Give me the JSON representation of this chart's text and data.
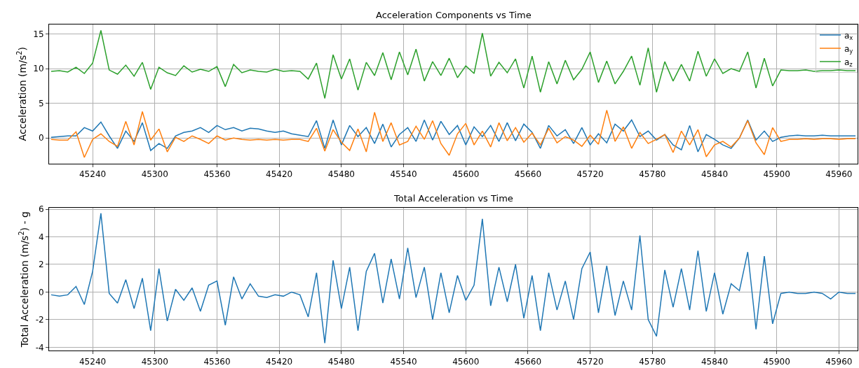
{
  "chart_data": [
    {
      "type": "line",
      "title": "Acceleration Components vs Time",
      "ylabel": "Acceleration (m/s$^{2}$)",
      "x": [
        45200,
        45208,
        45216,
        45224,
        45232,
        45240,
        45248,
        45256,
        45264,
        45272,
        45280,
        45288,
        45296,
        45304,
        45312,
        45320,
        45328,
        45336,
        45344,
        45352,
        45360,
        45368,
        45376,
        45384,
        45392,
        45400,
        45408,
        45416,
        45424,
        45432,
        45440,
        45448,
        45456,
        45464,
        45472,
        45480,
        45488,
        45496,
        45504,
        45512,
        45520,
        45528,
        45536,
        45544,
        45552,
        45560,
        45568,
        45576,
        45584,
        45592,
        45600,
        45608,
        45616,
        45624,
        45632,
        45640,
        45648,
        45656,
        45664,
        45672,
        45680,
        45688,
        45696,
        45704,
        45712,
        45720,
        45728,
        45736,
        45744,
        45752,
        45760,
        45768,
        45776,
        45784,
        45792,
        45800,
        45808,
        45816,
        45824,
        45832,
        45840,
        45848,
        45856,
        45864,
        45872,
        45880,
        45888,
        45896,
        45904,
        45912,
        45920,
        45928,
        45936,
        45944,
        45952,
        45960,
        45968,
        45976
      ],
      "series": [
        {
          "name": "a$_{x}$",
          "color": "#1f77b4",
          "values": [
            0.1,
            0.2,
            0.3,
            0.3,
            1.5,
            1.0,
            2.3,
            0.3,
            -1.5,
            1.0,
            -0.5,
            2.2,
            -1.8,
            -0.8,
            -1.5,
            0.3,
            0.8,
            1.0,
            1.5,
            0.8,
            1.8,
            1.2,
            1.5,
            1.0,
            1.4,
            1.3,
            1.0,
            0.8,
            1.0,
            0.6,
            0.4,
            0.2,
            2.5,
            -1.5,
            2.6,
            -1.0,
            1.8,
            0.2,
            1.5,
            -0.8,
            2.0,
            -1.3,
            0.5,
            1.5,
            -0.5,
            2.6,
            -0.3,
            2.4,
            0.5,
            1.8,
            -1.0,
            1.6,
            0.2,
            1.8,
            -0.5,
            2.2,
            -0.4,
            2.0,
            0.8,
            -1.5,
            1.8,
            0.3,
            1.2,
            -0.8,
            1.5,
            -1.0,
            0.6,
            -0.7,
            2.0,
            1.0,
            2.6,
            0.2,
            1.0,
            -0.3,
            0.5,
            -1.0,
            -1.7,
            1.8,
            -2.0,
            0.5,
            -0.2,
            -1.0,
            -1.5,
            0.0,
            2.6,
            -0.3,
            1.0,
            -0.5,
            0.1,
            0.3,
            0.4,
            0.3,
            0.3,
            0.4,
            0.3,
            0.3,
            0.3,
            0.3
          ]
        },
        {
          "name": "a$_{y}$",
          "color": "#ff7f0e",
          "values": [
            -0.2,
            -0.3,
            -0.3,
            0.9,
            -2.8,
            -0.2,
            0.6,
            -0.5,
            -1.2,
            2.4,
            -1.0,
            3.8,
            -0.3,
            1.3,
            -2.0,
            0.1,
            -0.5,
            0.3,
            -0.2,
            -0.8,
            0.3,
            -0.3,
            0.0,
            -0.2,
            -0.3,
            -0.2,
            -0.3,
            -0.2,
            -0.3,
            -0.2,
            -0.2,
            -0.5,
            1.4,
            -1.9,
            1.2,
            -0.6,
            -1.8,
            1.3,
            -2.0,
            3.7,
            -0.5,
            2.2,
            -1.0,
            -0.5,
            1.7,
            -0.2,
            2.5,
            -0.8,
            -2.5,
            0.6,
            2.1,
            -1.0,
            1.0,
            -1.3,
            2.2,
            -0.4,
            1.5,
            -0.6,
            0.7,
            -1.0,
            1.4,
            -0.7,
            0.2,
            -0.3,
            -1.2,
            0.4,
            -0.9,
            4.0,
            -0.5,
            1.6,
            -1.5,
            0.8,
            -0.8,
            -0.2,
            0.5,
            -2.1,
            1.0,
            -1.0,
            1.2,
            -2.7,
            -1.0,
            -0.5,
            -1.3,
            0.0,
            2.5,
            -0.7,
            -2.4,
            1.5,
            -0.5,
            -0.2,
            -0.2,
            -0.1,
            -0.2,
            -0.1,
            -0.1,
            -0.2,
            -0.1,
            -0.1
          ]
        },
        {
          "name": "a$_{z}$",
          "color": "#2ca02c",
          "values": [
            9.6,
            9.7,
            9.5,
            10.2,
            9.3,
            10.8,
            15.5,
            9.8,
            9.2,
            10.5,
            8.9,
            10.9,
            7.0,
            10.2,
            9.4,
            9.0,
            10.4,
            9.5,
            9.9,
            9.6,
            10.3,
            7.4,
            10.6,
            9.4,
            9.8,
            9.6,
            9.5,
            9.9,
            9.6,
            9.7,
            9.6,
            8.5,
            10.8,
            5.7,
            12.0,
            8.5,
            11.4,
            6.9,
            10.9,
            9.0,
            12.3,
            8.4,
            12.4,
            9.1,
            12.8,
            8.2,
            11.0,
            9.0,
            11.5,
            8.7,
            10.4,
            9.3,
            15.1,
            8.9,
            10.9,
            9.4,
            11.4,
            7.2,
            11.8,
            6.6,
            11.0,
            7.8,
            11.2,
            8.4,
            9.9,
            12.4,
            8.0,
            11.1,
            7.8,
            9.6,
            11.8,
            7.6,
            13.0,
            6.6,
            11.0,
            8.2,
            10.6,
            8.2,
            12.5,
            8.9,
            11.4,
            9.3,
            10.0,
            9.6,
            12.4,
            7.2,
            11.5,
            7.5,
            9.8,
            9.7,
            9.7,
            9.8,
            9.6,
            9.7,
            9.7,
            9.8,
            9.7,
            9.7
          ]
        }
      ],
      "xlim": [
        45198,
        45978
      ],
      "xticks": [
        45240,
        45300,
        45360,
        45420,
        45480,
        45540,
        45600,
        45660,
        45720,
        45780,
        45840,
        45900,
        45960
      ],
      "ylim": [
        -3.7,
        16.4
      ],
      "yticks": [
        0,
        5,
        10,
        15
      ],
      "grid": true,
      "legend": "top right"
    },
    {
      "type": "line",
      "title": "Total Acceleration vs Time",
      "ylabel": "Total Acceleration (m/s$^{2}$) - g",
      "x": [
        45200,
        45208,
        45216,
        45224,
        45232,
        45240,
        45248,
        45256,
        45264,
        45272,
        45280,
        45288,
        45296,
        45304,
        45312,
        45320,
        45328,
        45336,
        45344,
        45352,
        45360,
        45368,
        45376,
        45384,
        45392,
        45400,
        45408,
        45416,
        45424,
        45432,
        45440,
        45448,
        45456,
        45464,
        45472,
        45480,
        45488,
        45496,
        45504,
        45512,
        45520,
        45528,
        45536,
        45544,
        45552,
        45560,
        45568,
        45576,
        45584,
        45592,
        45600,
        45608,
        45616,
        45624,
        45632,
        45640,
        45648,
        45656,
        45664,
        45672,
        45680,
        45688,
        45696,
        45704,
        45712,
        45720,
        45728,
        45736,
        45744,
        45752,
        45760,
        45768,
        45776,
        45784,
        45792,
        45800,
        45808,
        45816,
        45824,
        45832,
        45840,
        45848,
        45856,
        45864,
        45872,
        45880,
        45888,
        45896,
        45904,
        45912,
        45920,
        45928,
        45936,
        45944,
        45952,
        45960,
        45968,
        45976
      ],
      "series": [
        {
          "color": "#1f77b4",
          "values": [
            -0.2,
            -0.3,
            -0.2,
            0.4,
            -0.9,
            1.5,
            5.7,
            -0.1,
            -0.8,
            0.9,
            -1.2,
            1.0,
            -2.8,
            1.7,
            -2.1,
            0.2,
            -0.6,
            0.3,
            -1.4,
            0.5,
            0.8,
            -2.4,
            1.1,
            -0.5,
            0.6,
            -0.3,
            -0.4,
            -0.2,
            -0.3,
            0.0,
            -0.2,
            -1.8,
            1.4,
            -3.7,
            2.3,
            -1.2,
            1.8,
            -2.8,
            1.5,
            2.8,
            -0.8,
            2.4,
            -0.5,
            3.2,
            -0.4,
            1.8,
            -2.0,
            1.4,
            -1.5,
            1.2,
            -0.6,
            0.5,
            5.3,
            -1.0,
            1.8,
            -0.7,
            2.0,
            -1.9,
            1.2,
            -2.8,
            1.4,
            -1.3,
            0.8,
            -2.0,
            1.7,
            2.9,
            -1.5,
            1.9,
            -1.7,
            0.8,
            -1.3,
            4.1,
            -2.0,
            -3.2,
            1.6,
            -1.1,
            1.7,
            -1.3,
            3.0,
            -1.4,
            1.4,
            -1.6,
            0.6,
            0.1,
            2.9,
            -2.7,
            2.6,
            -2.3,
            -0.1,
            0.0,
            -0.1,
            -0.1,
            0.0,
            -0.1,
            -0.5,
            0.0,
            -0.1,
            -0.1
          ]
        }
      ],
      "xlim": [
        45198,
        45978
      ],
      "xticks": [
        45240,
        45300,
        45360,
        45420,
        45480,
        45540,
        45600,
        45660,
        45720,
        45780,
        45840,
        45900,
        45960
      ],
      "ylim": [
        -4.25,
        6.1
      ],
      "yticks": [
        -4,
        -2,
        0,
        2,
        4,
        6
      ],
      "grid": true
    }
  ]
}
